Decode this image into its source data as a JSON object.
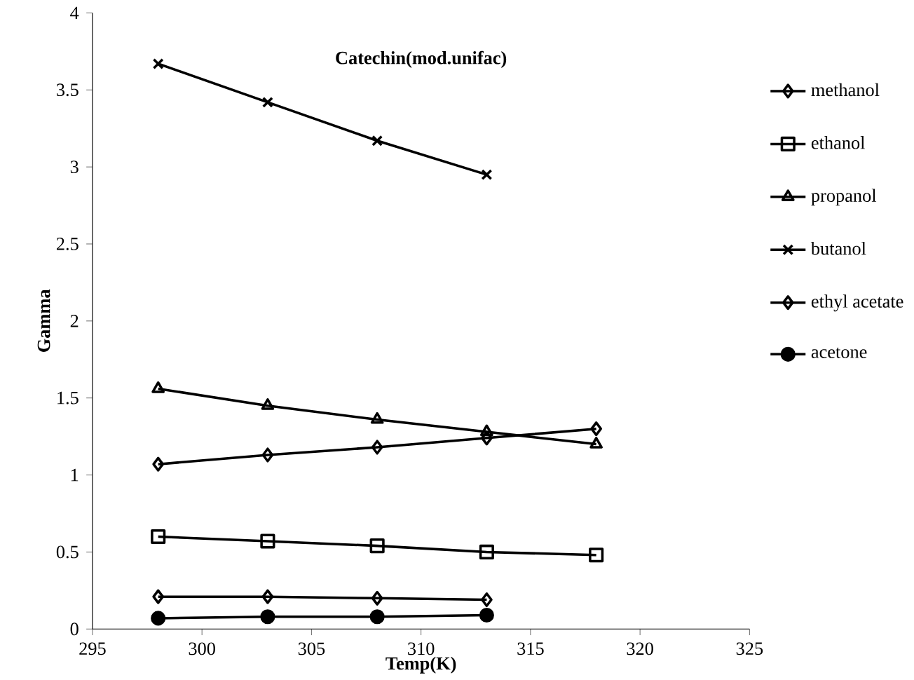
{
  "chart_data": {
    "type": "line",
    "title": "Catechin(mod.unifac)",
    "xlabel": "Temp(K)",
    "ylabel": "Gamma",
    "x": [
      298,
      303,
      308,
      313,
      318
    ],
    "series": [
      {
        "name": "methanol",
        "color": "#000000",
        "marker": "diamond",
        "values": [
          0.21,
          0.21,
          0.2,
          0.19,
          null
        ]
      },
      {
        "name": "ethanol",
        "color": "#000000",
        "marker": "square",
        "values": [
          0.6,
          0.57,
          0.54,
          0.5,
          0.48
        ]
      },
      {
        "name": "propanol",
        "color": "#000000",
        "marker": "triangle",
        "values": [
          1.56,
          1.45,
          1.36,
          1.28,
          1.2
        ]
      },
      {
        "name": "butanol",
        "color": "#000000",
        "marker": "cross",
        "values": [
          3.67,
          3.42,
          3.17,
          2.95,
          null
        ]
      },
      {
        "name": "ethyl acetate",
        "color": "#000000",
        "marker": "diamond",
        "values": [
          1.07,
          1.13,
          1.18,
          1.24,
          1.3
        ]
      },
      {
        "name": "acetone",
        "color": "#000000",
        "marker": "circle",
        "values": [
          0.07,
          0.08,
          0.08,
          0.09,
          null
        ]
      }
    ],
    "xlim": [
      295,
      325
    ],
    "xticks": [
      295,
      300,
      305,
      310,
      315,
      320,
      325
    ],
    "ylim": [
      0,
      4
    ],
    "yticks": [
      0,
      0.5,
      1,
      1.5,
      2,
      2.5,
      3,
      3.5,
      4
    ],
    "grid": false,
    "legend": "right",
    "line_style": "solid"
  }
}
